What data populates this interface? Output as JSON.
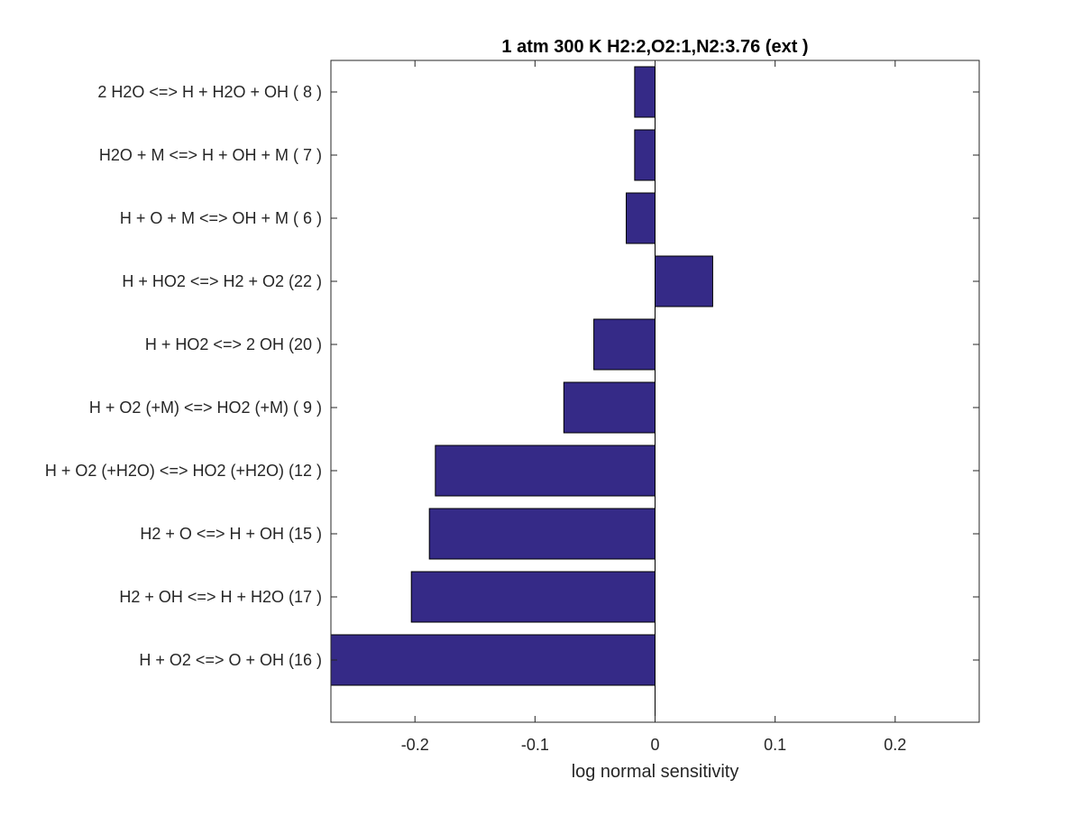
{
  "chart_data": {
    "type": "bar",
    "orientation": "horizontal",
    "title": "1 atm 300 K H2:2,O2:1,N2:3.76 (ext )",
    "xlabel": "log normal sensitivity",
    "ylabel": "",
    "xlim": [
      -0.27,
      0.27
    ],
    "xticks": [
      -0.2,
      -0.1,
      0,
      0.1,
      0.2
    ],
    "xtick_labels": [
      "-0.2",
      "-0.1",
      "0",
      "0.1",
      "0.2"
    ],
    "grid": false,
    "bar_color": "#352a87",
    "bar_edge_color": "#000000",
    "categories": [
      "2 H2O <=> H + H2O + OH ( 8 )",
      "H2O + M <=> H + OH + M ( 7 )",
      "H + O + M <=> OH + M ( 6 )",
      "H + HO2 <=> H2 + O2 (22 )",
      "H + HO2 <=> 2 OH (20 )",
      "H + O2 (+M) <=> HO2 (+M) ( 9 )",
      "H + O2 (+H2O) <=> HO2 (+H2O) (12 )",
      "H2 + O <=> H + OH (15 )",
      "H2 + OH <=> H + H2O (17 )",
      "H + O2 <=> O + OH (16 )"
    ],
    "values": [
      -0.017,
      -0.017,
      -0.024,
      0.048,
      -0.051,
      -0.076,
      -0.183,
      -0.188,
      -0.203,
      -0.27
    ]
  }
}
